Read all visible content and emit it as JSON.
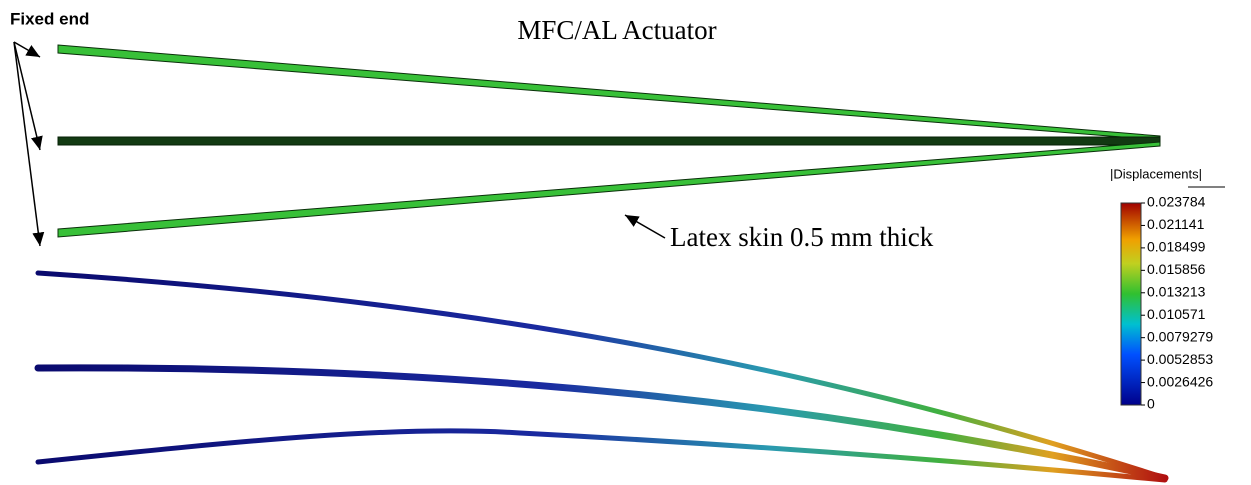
{
  "title": "MFC/AL Actuator",
  "annotations": {
    "fixed_end": "Fixed end",
    "skin": "Latex skin 0.5 mm thick"
  },
  "legend": {
    "title": "|Displacements|",
    "ticks": [
      "0.023784",
      "0.021141",
      "0.018499",
      "0.015856",
      "0.013213",
      "0.010571",
      "0.0079279",
      "0.0052853",
      "0.0026426",
      "0"
    ]
  }
}
